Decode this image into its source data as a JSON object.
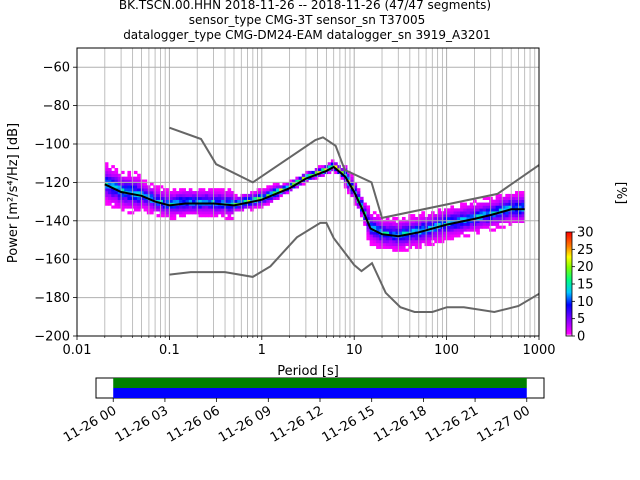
{
  "title_lines": [
    "BK.TSCN.00.HHN   2018-11-26 -- 2018-11-26  (47/47 segments)",
    "sensor_type CMG-3T sensor_sn T37005",
    "datalogger_type CMG-DM24-EAM datalogger_sn 3919_A3201"
  ],
  "chart_data": [
    {
      "type": "heatmap",
      "xlabel": "Period [s]",
      "ylabel": "Power [m²/s⁴/Hz] [dB]",
      "xscale": "log",
      "xlim": [
        0.01,
        1000
      ],
      "ylim": [
        -200,
        -50
      ],
      "x_ticks": [
        {
          "v": 0.01,
          "label": "0.01"
        },
        {
          "v": 0.1,
          "label": "0.1"
        },
        {
          "v": 1,
          "label": "1"
        },
        {
          "v": 10,
          "label": "10"
        },
        {
          "v": 100,
          "label": "100"
        },
        {
          "v": 1000,
          "label": "1000"
        }
      ],
      "y_ticks": [
        {
          "v": -60,
          "label": "−60"
        },
        {
          "v": -80,
          "label": "−80"
        },
        {
          "v": -100,
          "label": "−100"
        },
        {
          "v": -120,
          "label": "−120"
        },
        {
          "v": -140,
          "label": "−140"
        },
        {
          "v": -160,
          "label": "−160"
        },
        {
          "v": -180,
          "label": "−180"
        },
        {
          "v": -200,
          "label": "−200"
        }
      ],
      "grid": true,
      "mode_line": [
        [
          0.02,
          -121
        ],
        [
          0.03,
          -125
        ],
        [
          0.05,
          -127
        ],
        [
          0.07,
          -130
        ],
        [
          0.1,
          -132
        ],
        [
          0.15,
          -131
        ],
        [
          0.2,
          -131
        ],
        [
          0.3,
          -131
        ],
        [
          0.5,
          -132
        ],
        [
          0.8,
          -130
        ],
        [
          1,
          -129
        ],
        [
          2,
          -123
        ],
        [
          3,
          -118
        ],
        [
          5,
          -114
        ],
        [
          6,
          -112
        ],
        [
          8,
          -117
        ],
        [
          10,
          -125
        ],
        [
          12,
          -133
        ],
        [
          15,
          -144
        ],
        [
          20,
          -147
        ],
        [
          30,
          -148
        ],
        [
          50,
          -146
        ],
        [
          100,
          -142
        ],
        [
          200,
          -139
        ],
        [
          300,
          -137
        ],
        [
          500,
          -134
        ],
        [
          700,
          -134
        ]
      ],
      "nhnm": [
        [
          0.1,
          -91.5
        ],
        [
          0.22,
          -97.4
        ],
        [
          0.32,
          -110.5
        ],
        [
          0.8,
          -120
        ],
        [
          3.8,
          -97.9
        ],
        [
          4.6,
          -96.5
        ],
        [
          6.3,
          -101
        ],
        [
          7.9,
          -113.5
        ],
        [
          15.4,
          -120
        ],
        [
          20,
          -138.5
        ],
        [
          354.8,
          -126
        ],
        [
          1000,
          -111
        ]
      ],
      "nlnm": [
        [
          0.1,
          -168
        ],
        [
          0.17,
          -166.7
        ],
        [
          0.4,
          -166.7
        ],
        [
          0.8,
          -169.2
        ],
        [
          1.24,
          -163.7
        ],
        [
          2.4,
          -148.6
        ],
        [
          4.3,
          -141.1
        ],
        [
          5,
          -141.1
        ],
        [
          6,
          -149
        ],
        [
          10,
          -163
        ],
        [
          12,
          -166.2
        ],
        [
          15.6,
          -162.1
        ],
        [
          21.9,
          -177.5
        ],
        [
          31.6,
          -185
        ],
        [
          45,
          -187.5
        ],
        [
          70,
          -187.5
        ],
        [
          101,
          -185
        ],
        [
          154,
          -185
        ],
        [
          328,
          -187.5
        ],
        [
          600,
          -184.4
        ],
        [
          1000,
          -178
        ]
      ],
      "colorbar": {
        "label": "[%]",
        "min": 0,
        "max": 30,
        "ticks": [
          {
            "v": 0,
            "label": "0"
          },
          {
            "v": 5,
            "label": "5"
          },
          {
            "v": 10,
            "label": "10"
          },
          {
            "v": 15,
            "label": "15"
          },
          {
            "v": 20,
            "label": "20"
          },
          {
            "v": 25,
            "label": "25"
          },
          {
            "v": 30,
            "label": "30"
          }
        ]
      },
      "colors": {
        "mode": "#000000",
        "models": "#666666",
        "grid": "#b0b0b0"
      }
    },
    {
      "type": "timeline",
      "x_ticks": [
        "11-26 00",
        "11-26 03",
        "11-26 06",
        "11-26 09",
        "11-26 12",
        "11-26 15",
        "11-26 18",
        "11-26 21",
        "11-27 00"
      ],
      "x_range_hours": [
        -1,
        25
      ],
      "bars": [
        {
          "color": "#008000",
          "from_hour": 0,
          "to_hour": 24
        },
        {
          "color": "#0000ff",
          "from_hour": 0,
          "to_hour": 24
        }
      ]
    }
  ]
}
